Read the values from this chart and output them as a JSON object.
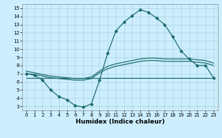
{
  "xlabel": "Humidex (Indice chaleur)",
  "bg_color": "#cceeff",
  "line_color": "#1a6b6b",
  "grid_color": "#aad4d4",
  "xlim": [
    -0.5,
    23.5
  ],
  "ylim": [
    2.5,
    15.5
  ],
  "xticks": [
    0,
    1,
    2,
    3,
    4,
    5,
    6,
    7,
    8,
    9,
    10,
    11,
    12,
    13,
    14,
    15,
    16,
    17,
    18,
    19,
    20,
    21,
    22,
    23
  ],
  "yticks": [
    3,
    4,
    5,
    6,
    7,
    8,
    9,
    10,
    11,
    12,
    13,
    14,
    15
  ],
  "line1_x": [
    0,
    1,
    2,
    3,
    4,
    5,
    6,
    7,
    8,
    9,
    10,
    11,
    12,
    13,
    14,
    15,
    16,
    17,
    18,
    19,
    20,
    21,
    22,
    23
  ],
  "line1_y": [
    7.0,
    6.8,
    6.2,
    5.0,
    4.2,
    3.8,
    3.1,
    2.9,
    3.3,
    6.2,
    9.5,
    12.2,
    13.3,
    14.1,
    14.8,
    14.5,
    13.8,
    13.0,
    11.5,
    9.8,
    8.8,
    8.0,
    8.0,
    6.5
  ],
  "line2_x": [
    0,
    1,
    2,
    3,
    4,
    5,
    6,
    7,
    8,
    9,
    10,
    11,
    12,
    13,
    14,
    15,
    16,
    17,
    18,
    19,
    20,
    21,
    22,
    23
  ],
  "line2_y": [
    7.3,
    7.1,
    6.9,
    6.7,
    6.6,
    6.5,
    6.4,
    6.4,
    6.6,
    7.3,
    7.9,
    8.2,
    8.4,
    8.6,
    8.8,
    8.9,
    8.9,
    8.8,
    8.8,
    8.8,
    8.8,
    8.7,
    8.6,
    8.3
  ],
  "line3_x": [
    0,
    1,
    2,
    3,
    4,
    5,
    6,
    7,
    8,
    9,
    10,
    11,
    12,
    13,
    14,
    15,
    16,
    17,
    18,
    19,
    20,
    21,
    22,
    23
  ],
  "line3_y": [
    7.0,
    6.9,
    6.7,
    6.5,
    6.4,
    6.3,
    6.2,
    6.2,
    6.4,
    7.1,
    7.6,
    7.9,
    8.1,
    8.3,
    8.5,
    8.6,
    8.6,
    8.5,
    8.5,
    8.5,
    8.5,
    8.4,
    8.3,
    8.0
  ],
  "line4_x": [
    0,
    23
  ],
  "line4_y": [
    6.5,
    6.5
  ],
  "marker": "D",
  "markersize": 2.5,
  "tick_fontsize": 5.0,
  "xlabel_fontsize": 6.5
}
